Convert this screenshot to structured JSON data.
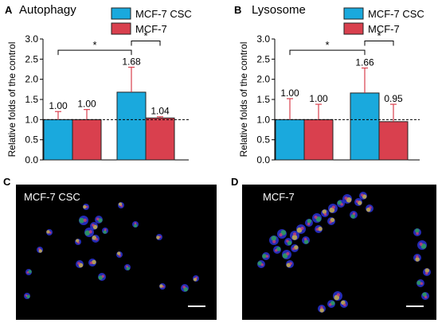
{
  "colors": {
    "csc": "#1aa9dd",
    "mcf7": "#d9404e",
    "bar_edge": "#222222",
    "error_bar": "#d9404e"
  },
  "chart_data": [
    {
      "type": "bar",
      "panel_letter": "A",
      "title": "Autophagy",
      "ylabel": "Relative folds of the control",
      "ylim": [
        0.0,
        3.0
      ],
      "yticks": [
        "0.0",
        "0.5",
        "1.0",
        "1.5",
        "2.0",
        "2.5",
        "3.0"
      ],
      "reference_line": 1.0,
      "legend_position": "top-center",
      "series": [
        {
          "name": "MCF-7 CSC",
          "values": [
            1.0,
            1.68
          ],
          "errors": [
            0.2,
            0.62
          ],
          "labels": [
            "1.00",
            "1.68"
          ]
        },
        {
          "name": "MCF-7",
          "values": [
            1.0,
            1.04
          ],
          "errors": [
            0.25,
            0.03
          ],
          "labels": [
            "1.00",
            "1.04"
          ]
        }
      ],
      "significance": [
        {
          "label": "*",
          "from": [
            0,
            0
          ],
          "to": [
            0,
            1
          ]
        },
        {
          "label": "*",
          "from": [
            0,
            1
          ],
          "to": [
            1,
            1
          ]
        }
      ]
    },
    {
      "type": "bar",
      "panel_letter": "B",
      "title": "Lysosome",
      "ylabel": "Relative folds of the control",
      "ylim": [
        0.0,
        3.0
      ],
      "yticks": [
        "0.0",
        "0.5",
        "1.0",
        "1.5",
        "2.0",
        "2.5",
        "3.0"
      ],
      "reference_line": 1.0,
      "legend_position": "top-center",
      "series": [
        {
          "name": "MCF-7 CSC",
          "values": [
            1.0,
            1.66
          ],
          "errors": [
            0.52,
            0.62
          ],
          "labels": [
            "1.00",
            "1.66"
          ]
        },
        {
          "name": "MCF-7",
          "values": [
            1.0,
            0.95
          ],
          "errors": [
            0.38,
            0.43
          ],
          "labels": [
            "1.00",
            "0.95"
          ]
        }
      ],
      "significance": [
        {
          "label": "*",
          "from": [
            0,
            0
          ],
          "to": [
            0,
            1
          ]
        },
        {
          "label": "*",
          "from": [
            0,
            1
          ],
          "to": [
            1,
            1
          ]
        }
      ]
    }
  ],
  "micrographs": [
    {
      "panel_letter": "C",
      "label": "MCF-7 CSC"
    },
    {
      "panel_letter": "D",
      "label": "MCF-7"
    }
  ]
}
